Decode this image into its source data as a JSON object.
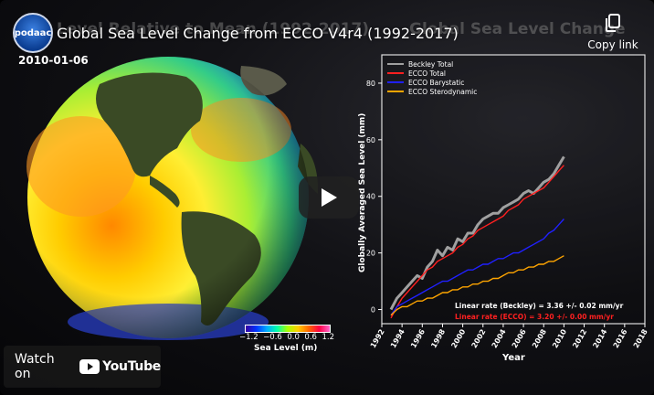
{
  "video": {
    "title": "Global Sea Level Change from ECCO V4r4 (1992-2017)",
    "logo_text": "podaac",
    "copy_link_label": "Copy link",
    "watch_on_label": "Watch on",
    "youtube_label": "YouTube"
  },
  "frame": {
    "left_title": "Level Relative to Mean (1992-2017)",
    "right_title": "Global Sea Level Change",
    "date": "2010-01-06",
    "colorbar": {
      "ticks": [
        "−1.2",
        "−0.6",
        "0.0",
        "0.6",
        "1.2"
      ],
      "label": "Sea Level (m)"
    }
  },
  "chart_data": {
    "type": "line",
    "xlabel": "Year",
    "ylabel": "Globally Averaged Sea Level (mm)",
    "xlim": [
      1992,
      2018
    ],
    "ylim": [
      -5,
      90
    ],
    "xticks": [
      "1992",
      "1994",
      "1996",
      "1998",
      "2000",
      "2002",
      "2004",
      "2006",
      "2008",
      "2010",
      "2012",
      "2014",
      "2016",
      "2018"
    ],
    "yticks": [
      0,
      20,
      40,
      60,
      80
    ],
    "legend_position": "top-left",
    "series": [
      {
        "name": "Beckley Total",
        "color": "#a0a0a0",
        "x": [
          1992.9,
          1993.5,
          1994.0,
          1994.5,
          1995.0,
          1995.5,
          1996.0,
          1996.5,
          1997.0,
          1997.5,
          1998.0,
          1998.5,
          1999.0,
          1999.5,
          2000.0,
          2000.5,
          2001.0,
          2001.5,
          2002.0,
          2002.5,
          2003.0,
          2003.5,
          2004.0,
          2004.5,
          2005.0,
          2005.5,
          2006.0,
          2006.5,
          2007.0,
          2007.5,
          2008.0,
          2008.5,
          2009.0,
          2009.5,
          2010.0
        ],
        "y": [
          0,
          4,
          6,
          8,
          10,
          12,
          11,
          15,
          17,
          21,
          19,
          22,
          21,
          25,
          24,
          27,
          27,
          30,
          32,
          33,
          34,
          34,
          36,
          37,
          38,
          39,
          41,
          42,
          41,
          43,
          45,
          46,
          48,
          51,
          54
        ]
      },
      {
        "name": "ECCO Total",
        "color": "#ff2020",
        "x": [
          1992.9,
          1993.5,
          1994.0,
          1994.5,
          1995.0,
          1995.5,
          1996.0,
          1996.5,
          1997.0,
          1997.5,
          1998.0,
          1998.5,
          1999.0,
          1999.5,
          2000.0,
          2000.5,
          2001.0,
          2001.5,
          2002.0,
          2002.5,
          2003.0,
          2003.5,
          2004.0,
          2004.5,
          2005.0,
          2005.5,
          2006.0,
          2006.5,
          2007.0,
          2007.5,
          2008.0,
          2008.5,
          2009.0,
          2009.5,
          2010.0
        ],
        "y": [
          -3,
          1,
          4,
          6,
          8,
          10,
          12,
          14,
          15,
          17,
          18,
          19,
          20,
          22,
          23,
          25,
          26,
          28,
          29,
          30,
          31,
          32,
          33,
          35,
          36,
          37,
          39,
          40,
          41,
          42,
          43,
          45,
          47,
          49,
          51
        ]
      },
      {
        "name": "ECCO Barystatic",
        "color": "#2020ff",
        "x": [
          1992.9,
          1993.5,
          1994.0,
          1994.5,
          1995.0,
          1995.5,
          1996.0,
          1996.5,
          1997.0,
          1997.5,
          1998.0,
          1998.5,
          1999.0,
          1999.5,
          2000.0,
          2000.5,
          2001.0,
          2001.5,
          2002.0,
          2002.5,
          2003.0,
          2003.5,
          2004.0,
          2004.5,
          2005.0,
          2005.5,
          2006.0,
          2006.5,
          2007.0,
          2007.5,
          2008.0,
          2008.5,
          2009.0,
          2009.5,
          2010.0
        ],
        "y": [
          -2,
          1,
          2,
          3,
          4,
          5,
          6,
          7,
          8,
          9,
          10,
          10,
          11,
          12,
          13,
          14,
          14,
          15,
          16,
          16,
          17,
          18,
          18,
          19,
          20,
          20,
          21,
          22,
          23,
          24,
          25,
          27,
          28,
          30,
          32
        ]
      },
      {
        "name": "ECCO Sterodynamic",
        "color": "#ffa500",
        "x": [
          1992.9,
          1993.5,
          1994.0,
          1994.5,
          1995.0,
          1995.5,
          1996.0,
          1996.5,
          1997.0,
          1997.5,
          1998.0,
          1998.5,
          1999.0,
          1999.5,
          2000.0,
          2000.5,
          2001.0,
          2001.5,
          2002.0,
          2002.5,
          2003.0,
          2003.5,
          2004.0,
          2004.5,
          2005.0,
          2005.5,
          2006.0,
          2006.5,
          2007.0,
          2007.5,
          2008.0,
          2008.5,
          2009.0,
          2009.5,
          2010.0
        ],
        "y": [
          -2,
          0,
          1,
          1,
          2,
          3,
          3,
          4,
          4,
          5,
          6,
          6,
          7,
          7,
          8,
          8,
          9,
          9,
          10,
          10,
          11,
          11,
          12,
          13,
          13,
          14,
          14,
          15,
          15,
          16,
          16,
          17,
          17,
          18,
          19
        ]
      }
    ],
    "annotations": [
      {
        "text": "Linear rate (Beckley) =  3.36 +/-  0.02 mm/yr",
        "color": "#ffffff"
      },
      {
        "text": "Linear rate (ECCO) =  3.20 +/-  0.00 mm/yr",
        "color": "#ff2020"
      }
    ]
  }
}
